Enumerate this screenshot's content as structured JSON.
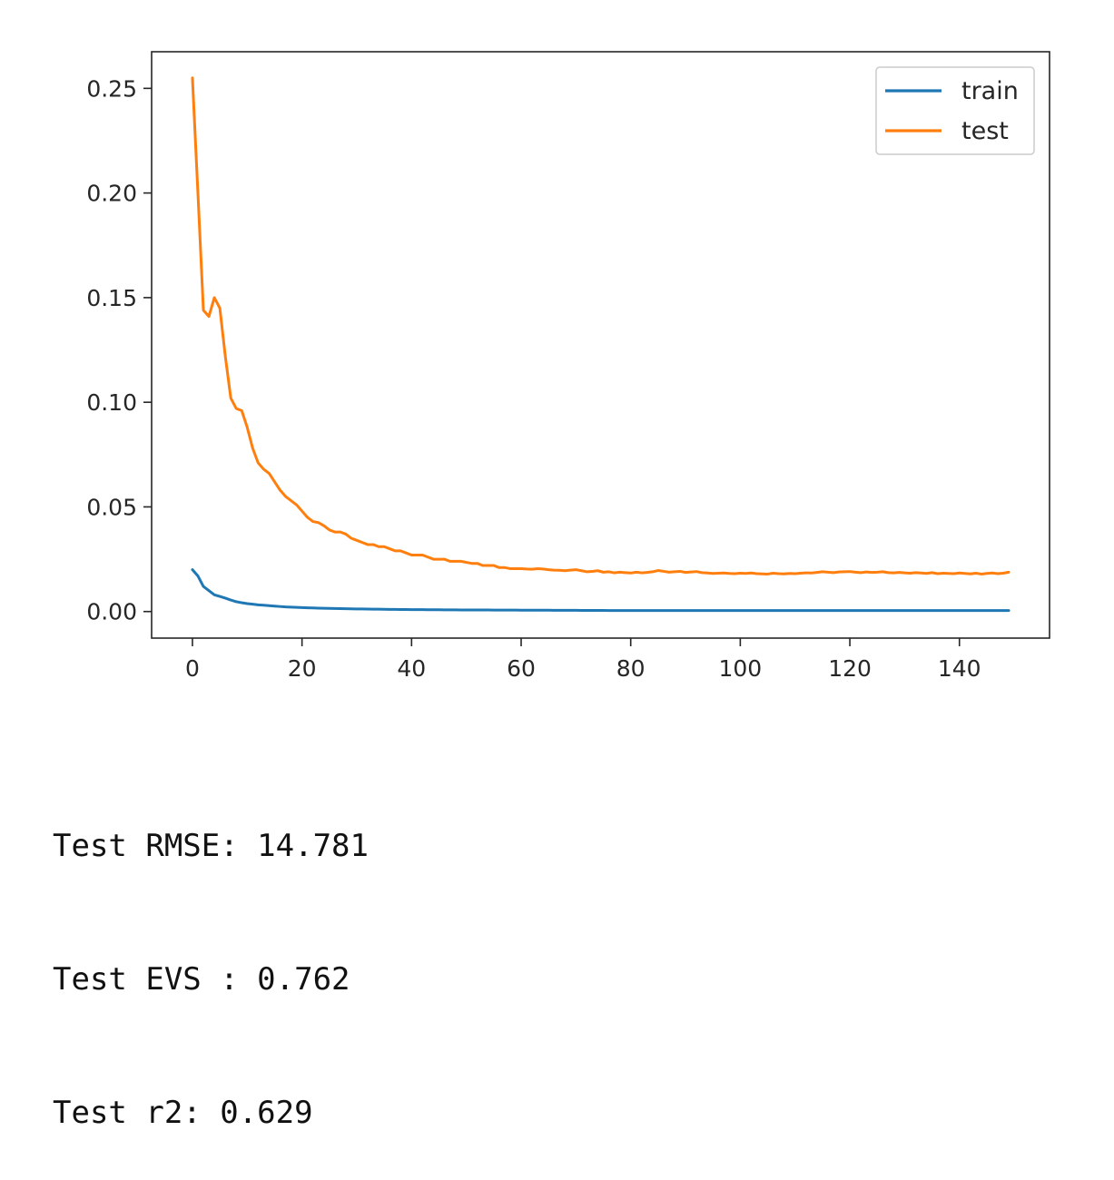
{
  "colors": {
    "train": "#1f77b4",
    "test": "#ff7f0e",
    "axes": "#262626",
    "background": "#ffffff"
  },
  "chart_data": {
    "type": "line",
    "title": "",
    "xlabel": "",
    "ylabel": "",
    "xlim": [
      -7.45,
      156.45
    ],
    "ylim": [
      -0.0127,
      0.2675
    ],
    "x_ticks": [
      0,
      20,
      40,
      60,
      80,
      100,
      120,
      140
    ],
    "y_ticks": [
      0.0,
      0.05,
      0.1,
      0.15,
      0.2,
      0.25
    ],
    "grid": false,
    "legend": {
      "position": "top-right",
      "entries": [
        "train",
        "test"
      ]
    },
    "x_start": 0,
    "x_step": 1,
    "series": [
      {
        "name": "train",
        "color": "#1f77b4",
        "values": [
          0.02,
          0.017,
          0.012,
          0.01,
          0.008,
          0.0072,
          0.0064,
          0.0055,
          0.0047,
          0.0042,
          0.0038,
          0.0035,
          0.0032,
          0.003,
          0.0028,
          0.0026,
          0.0024,
          0.0022,
          0.0021,
          0.002,
          0.0019,
          0.0018,
          0.0017,
          0.0016,
          0.00155,
          0.0015,
          0.00145,
          0.0014,
          0.00135,
          0.0013,
          0.00126,
          0.00122,
          0.00118,
          0.00114,
          0.0011,
          0.00107,
          0.00104,
          0.00101,
          0.00098,
          0.00095,
          0.00093,
          0.00091,
          0.00089,
          0.00087,
          0.00085,
          0.00083,
          0.00081,
          0.00079,
          0.00078,
          0.00077,
          0.00076,
          0.00075,
          0.00074,
          0.00073,
          0.00072,
          0.00071,
          0.0007,
          0.00069,
          0.00068,
          0.00067,
          0.00066,
          0.00065,
          0.00064,
          0.00063,
          0.00062,
          0.00061,
          0.0006,
          0.00059,
          0.00058,
          0.00057,
          0.00056,
          0.00055,
          0.00054,
          0.00053,
          0.00052,
          0.00051,
          0.0005,
          0.0005,
          0.0005,
          0.0005,
          0.0005,
          0.0005,
          0.0005,
          0.0005,
          0.0005,
          0.0005,
          0.0005,
          0.0005,
          0.0005,
          0.0005,
          0.0005,
          0.0005,
          0.0005,
          0.0005,
          0.0005,
          0.0005,
          0.0005,
          0.0005,
          0.0005,
          0.0005,
          0.0005,
          0.0005,
          0.0005,
          0.0005,
          0.0005,
          0.0005,
          0.0005,
          0.0005,
          0.0005,
          0.0005,
          0.0005,
          0.0005,
          0.0005,
          0.0005,
          0.0005,
          0.0005,
          0.0005,
          0.0005,
          0.0005,
          0.0005,
          0.0005,
          0.0005,
          0.0005,
          0.0005,
          0.0005,
          0.0005,
          0.0005,
          0.0005,
          0.0005,
          0.0005,
          0.0005,
          0.0005,
          0.0005,
          0.0005,
          0.0005,
          0.0005,
          0.0005,
          0.0005,
          0.0005,
          0.0005,
          0.0005,
          0.0005,
          0.0005,
          0.0005,
          0.0005,
          0.0005,
          0.0005,
          0.0005,
          0.0005,
          0.0005
        ]
      },
      {
        "name": "test",
        "color": "#ff7f0e",
        "values": [
          0.255,
          0.2,
          0.144,
          0.141,
          0.15,
          0.145,
          0.122,
          0.102,
          0.097,
          0.096,
          0.088,
          0.078,
          0.071,
          0.068,
          0.066,
          0.062,
          0.058,
          0.055,
          0.053,
          0.051,
          0.048,
          0.045,
          0.043,
          0.0425,
          0.041,
          0.039,
          0.038,
          0.038,
          0.037,
          0.035,
          0.034,
          0.033,
          0.032,
          0.032,
          0.031,
          0.031,
          0.03,
          0.029,
          0.029,
          0.028,
          0.027,
          0.027,
          0.027,
          0.026,
          0.025,
          0.025,
          0.025,
          0.024,
          0.024,
          0.024,
          0.0235,
          0.023,
          0.023,
          0.022,
          0.022,
          0.022,
          0.021,
          0.021,
          0.0205,
          0.0205,
          0.0205,
          0.0203,
          0.0202,
          0.0205,
          0.0203,
          0.02,
          0.0198,
          0.0197,
          0.0195,
          0.0198,
          0.02,
          0.0195,
          0.019,
          0.0192,
          0.0195,
          0.0188,
          0.019,
          0.0185,
          0.0188,
          0.0186,
          0.0184,
          0.0188,
          0.0185,
          0.0187,
          0.019,
          0.0196,
          0.0192,
          0.0188,
          0.019,
          0.0192,
          0.0187,
          0.0189,
          0.0191,
          0.0186,
          0.0184,
          0.0182,
          0.0183,
          0.0184,
          0.0182,
          0.0181,
          0.0183,
          0.0182,
          0.0184,
          0.0181,
          0.018,
          0.0179,
          0.0183,
          0.0181,
          0.018,
          0.0182,
          0.0181,
          0.0183,
          0.0185,
          0.0184,
          0.0187,
          0.019,
          0.0188,
          0.0186,
          0.0189,
          0.019,
          0.0191,
          0.0188,
          0.0186,
          0.0189,
          0.0187,
          0.0188,
          0.019,
          0.0186,
          0.0185,
          0.0187,
          0.0185,
          0.0183,
          0.0186,
          0.0184,
          0.0182,
          0.0186,
          0.0181,
          0.0183,
          0.0182,
          0.0181,
          0.0184,
          0.0182,
          0.018,
          0.0183,
          0.0179,
          0.0182,
          0.0184,
          0.0181,
          0.0183,
          0.0188
        ]
      }
    ]
  },
  "metrics": {
    "rmse_line": "Test RMSE: 14.781",
    "evs_line": "Test EVS : 0.762",
    "r2_line": "Test r2: 0.629"
  }
}
